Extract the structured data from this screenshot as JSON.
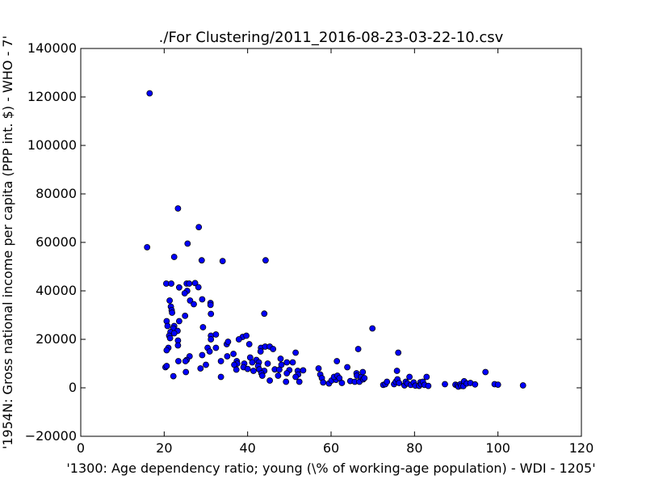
{
  "chart_data": {
    "type": "scatter",
    "title": "./For Clustering/2011_2016-08-23-03-22-10.csv",
    "xlabel": "'1300: Age dependency ratio; young  (\\% of working-age population) - WDI - 1205'",
    "ylabel": "'1954N: Gross national income per capita (PPP int. $) - WHO - 7'",
    "xlim": [
      0,
      120
    ],
    "ylim": [
      -20000,
      140000
    ],
    "x_ticks": [
      "0",
      "20",
      "40",
      "60",
      "80",
      "100",
      "120"
    ],
    "y_ticks": [
      "−20000",
      "0",
      "20000",
      "40000",
      "60000",
      "80000",
      "100000",
      "120000",
      "140000"
    ],
    "grid": false,
    "marker_color": "#0000ff",
    "points": [
      [
        16.5,
        121500
      ],
      [
        15.9,
        58000
      ],
      [
        23.3,
        74000
      ],
      [
        28.3,
        66300
      ],
      [
        25.6,
        59500
      ],
      [
        22.4,
        54000
      ],
      [
        29.0,
        52600
      ],
      [
        34.0,
        52300
      ],
      [
        44.3,
        52600
      ],
      [
        20.5,
        43000
      ],
      [
        21.7,
        43000
      ],
      [
        25.4,
        43000
      ],
      [
        26.0,
        43000
      ],
      [
        27.4,
        43200
      ],
      [
        23.6,
        41400
      ],
      [
        28.2,
        41500
      ],
      [
        25.5,
        40000
      ],
      [
        24.9,
        39000
      ],
      [
        21.3,
        36000
      ],
      [
        26.2,
        36000
      ],
      [
        29.1,
        36500
      ],
      [
        27.1,
        34500
      ],
      [
        31.1,
        35000
      ],
      [
        31.1,
        34200
      ],
      [
        21.6,
        33500
      ],
      [
        21.8,
        32000
      ],
      [
        21.9,
        31000
      ],
      [
        31.2,
        30500
      ],
      [
        44.0,
        30600
      ],
      [
        25.0,
        29700
      ],
      [
        20.6,
        27500
      ],
      [
        23.6,
        27500
      ],
      [
        20.8,
        25500
      ],
      [
        22.4,
        25500
      ],
      [
        29.3,
        25000
      ],
      [
        22.2,
        24500
      ],
      [
        23.2,
        23500
      ],
      [
        21.5,
        23000
      ],
      [
        22.4,
        22500
      ],
      [
        31.2,
        21500
      ],
      [
        32.4,
        22000
      ],
      [
        21.2,
        21500
      ],
      [
        38.8,
        21000
      ],
      [
        39.7,
        21500
      ],
      [
        21.4,
        20500
      ],
      [
        31.2,
        20000
      ],
      [
        23.3,
        19500
      ],
      [
        37.9,
        20000
      ],
      [
        35.0,
        18000
      ],
      [
        35.3,
        19000
      ],
      [
        40.4,
        18000
      ],
      [
        21.0,
        16500
      ],
      [
        23.3,
        17500
      ],
      [
        30.4,
        16500
      ],
      [
        32.4,
        16500
      ],
      [
        43.2,
        16500
      ],
      [
        44.2,
        17000
      ],
      [
        45.3,
        17000
      ],
      [
        46.1,
        16000
      ],
      [
        20.6,
        15500
      ],
      [
        30.9,
        15000
      ],
      [
        43.1,
        15000
      ],
      [
        51.5,
        14500
      ],
      [
        36.6,
        14000
      ],
      [
        35.1,
        13000
      ],
      [
        26.1,
        13000
      ],
      [
        29.1,
        13500
      ],
      [
        40.6,
        12500
      ],
      [
        47.9,
        12000
      ],
      [
        42.1,
        11500
      ],
      [
        23.4,
        11000
      ],
      [
        25.4,
        11500
      ],
      [
        25.1,
        11000
      ],
      [
        33.6,
        11000
      ],
      [
        37.4,
        11000
      ],
      [
        37.5,
        10000
      ],
      [
        39.2,
        10000
      ],
      [
        41.1,
        10500
      ],
      [
        42.7,
        10500
      ],
      [
        44.8,
        10000
      ],
      [
        49.4,
        10500
      ],
      [
        50.8,
        10500
      ],
      [
        30.0,
        9500
      ],
      [
        36.8,
        9500
      ],
      [
        39.0,
        8500
      ],
      [
        42.5,
        9000
      ],
      [
        48.1,
        9500
      ],
      [
        20.3,
        8500
      ],
      [
        20.6,
        9000
      ],
      [
        28.7,
        8000
      ],
      [
        37.3,
        7500
      ],
      [
        40.0,
        7800
      ],
      [
        41.4,
        7000
      ],
      [
        42.8,
        7600
      ],
      [
        44.0,
        7000
      ],
      [
        46.5,
        7600
      ],
      [
        47.6,
        7500
      ],
      [
        50.0,
        7300
      ],
      [
        52.0,
        7000
      ],
      [
        53.3,
        7200
      ],
      [
        25.2,
        6500
      ],
      [
        43.3,
        6000
      ],
      [
        49.4,
        6000
      ],
      [
        52.1,
        5500
      ],
      [
        22.2,
        4800
      ],
      [
        33.6,
        4500
      ],
      [
        43.5,
        5000
      ],
      [
        47.3,
        5000
      ],
      [
        51.5,
        4500
      ],
      [
        45.3,
        3000
      ],
      [
        49.2,
        2500
      ],
      [
        52.4,
        2500
      ],
      [
        57.0,
        8000
      ],
      [
        61.4,
        11000
      ],
      [
        57.4,
        5500
      ],
      [
        57.8,
        4000
      ],
      [
        58.1,
        2200
      ],
      [
        59.5,
        1800
      ],
      [
        60.1,
        3000
      ],
      [
        61.2,
        3300
      ],
      [
        60.7,
        4500
      ],
      [
        61.5,
        5000
      ],
      [
        62.0,
        4000
      ],
      [
        62.6,
        2000
      ],
      [
        63.9,
        8500
      ],
      [
        64.6,
        2800
      ],
      [
        65.7,
        2500
      ],
      [
        66.1,
        6000
      ],
      [
        66.2,
        5000
      ],
      [
        66.5,
        16000
      ],
      [
        66.8,
        2500
      ],
      [
        67.2,
        4500
      ],
      [
        67.7,
        3500
      ],
      [
        67.6,
        6500
      ],
      [
        68.0,
        4000
      ],
      [
        69.9,
        24500
      ],
      [
        72.5,
        1200
      ],
      [
        73.0,
        1500
      ],
      [
        73.4,
        2500
      ],
      [
        75.1,
        1500
      ],
      [
        75.5,
        2500
      ],
      [
        75.8,
        7000
      ],
      [
        75.9,
        3500
      ],
      [
        76.1,
        14500
      ],
      [
        76.3,
        2000
      ],
      [
        77.6,
        1000
      ],
      [
        77.9,
        2500
      ],
      [
        78.3,
        1800
      ],
      [
        78.8,
        4500
      ],
      [
        79.1,
        1200
      ],
      [
        79.8,
        2200
      ],
      [
        80.2,
        900
      ],
      [
        81.1,
        800
      ],
      [
        81.4,
        2300
      ],
      [
        81.6,
        1500
      ],
      [
        82.0,
        2500
      ],
      [
        82.4,
        1200
      ],
      [
        82.9,
        4500
      ],
      [
        83.3,
        800
      ],
      [
        87.3,
        1500
      ],
      [
        89.8,
        1300
      ],
      [
        90.3,
        1000
      ],
      [
        90.5,
        500
      ],
      [
        91.0,
        1500
      ],
      [
        91.2,
        800
      ],
      [
        91.7,
        700
      ],
      [
        91.9,
        2700
      ],
      [
        92.5,
        1800
      ],
      [
        93.4,
        2000
      ],
      [
        94.5,
        1400
      ],
      [
        97.0,
        6500
      ],
      [
        99.2,
        1500
      ],
      [
        100.0,
        1300
      ],
      [
        106.0,
        1000
      ]
    ]
  }
}
